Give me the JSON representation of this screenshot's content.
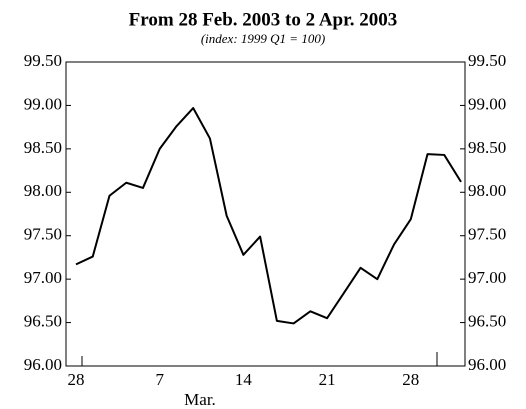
{
  "chart_data": {
    "type": "line",
    "title": "From 28 Feb. 2003 to 2 Apr. 2003",
    "subtitle": "(index: 1999 Q1 = 100)",
    "x_label": "Mar.",
    "categories": [
      "28",
      null,
      null,
      null,
      null,
      "7",
      null,
      null,
      null,
      null,
      "14",
      null,
      null,
      null,
      null,
      "21",
      null,
      null,
      null,
      null,
      "28",
      null,
      null,
      null
    ],
    "values": [
      97.17,
      97.26,
      97.96,
      98.11,
      98.05,
      98.5,
      98.76,
      98.97,
      98.62,
      97.73,
      97.28,
      97.49,
      96.52,
      96.49,
      96.63,
      96.55,
      96.84,
      97.13,
      97.0,
      97.4,
      97.69,
      98.44,
      98.43,
      98.12
    ],
    "color": "#000000",
    "ylim": [
      96,
      99.5
    ],
    "yticks": [
      {
        "value": 96,
        "label": "96.00"
      },
      {
        "value": 96.5,
        "label": "96.50"
      },
      {
        "value": 97,
        "label": "97.00"
      },
      {
        "value": 97.5,
        "label": "97.50"
      },
      {
        "value": 98,
        "label": "98.00"
      },
      {
        "value": 98.5,
        "label": "98.50"
      },
      {
        "value": 99,
        "label": "99.00"
      },
      {
        "value": 99.5,
        "label": "99.50"
      }
    ]
  }
}
